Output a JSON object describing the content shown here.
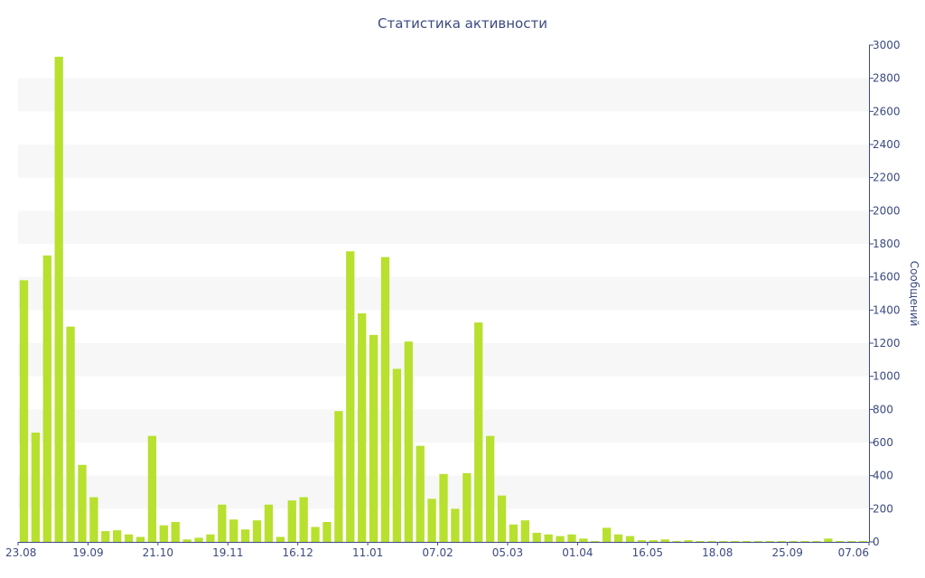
{
  "chart_data": {
    "type": "bar",
    "title": "Статистика активности",
    "xlabel": "",
    "ylabel": "Сообщений",
    "ylim": [
      0,
      3000
    ],
    "y_ticks": [
      0,
      200,
      400,
      600,
      800,
      1000,
      1200,
      1400,
      1600,
      1800,
      2000,
      2200,
      2400,
      2600,
      2800,
      3000
    ],
    "x_tick_labels": [
      "23.08",
      "19.09",
      "21.10",
      "19.11",
      "16.12",
      "11.01",
      "07.02",
      "05.03",
      "01.04",
      "16.05",
      "18.08",
      "25.09",
      "07.06"
    ],
    "x_tick_indices": [
      0,
      6,
      12,
      18,
      24,
      30,
      36,
      42,
      48,
      54,
      60,
      66,
      72
    ],
    "grid": "horizontal bands",
    "bar_color": "#b8e02e",
    "band_color": "#f7f7f7",
    "text_color": "#3c4a82",
    "axis_position": "right",
    "values": [
      1580,
      660,
      1730,
      2930,
      1300,
      465,
      270,
      65,
      70,
      45,
      30,
      640,
      100,
      120,
      15,
      25,
      45,
      225,
      135,
      75,
      130,
      225,
      30,
      250,
      270,
      90,
      120,
      790,
      1755,
      1380,
      1250,
      1720,
      1045,
      1210,
      580,
      260,
      410,
      200,
      415,
      1325,
      640,
      280,
      105,
      130,
      55,
      45,
      35,
      45,
      20,
      5,
      85,
      45,
      35,
      10,
      10,
      15,
      5,
      10,
      5,
      5,
      5,
      5,
      5,
      5,
      5,
      5,
      5,
      5,
      5,
      20,
      5,
      5,
      5
    ]
  }
}
